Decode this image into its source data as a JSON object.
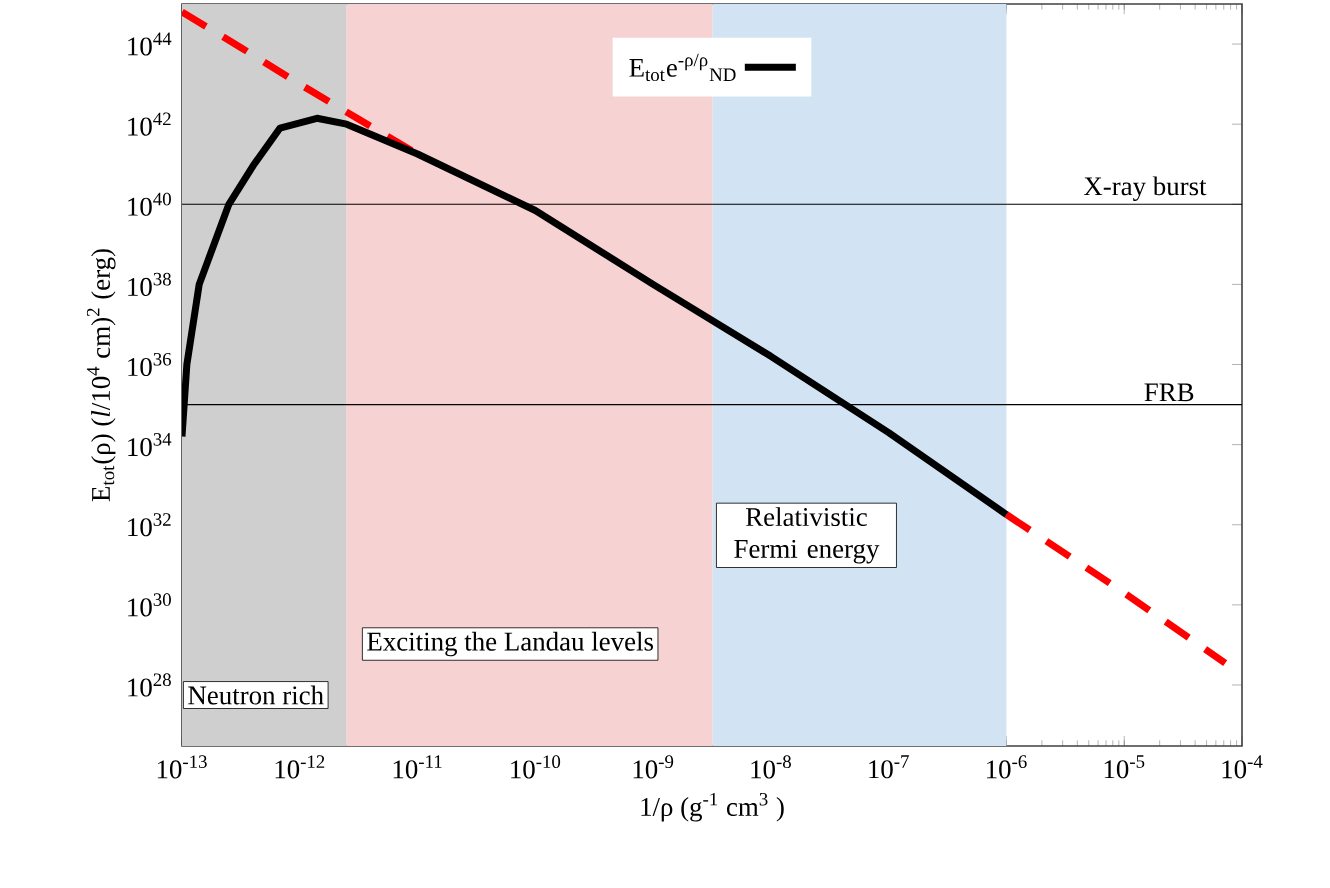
{
  "chart_data": {
    "type": "line",
    "xlabel": "1/ρ (g$^{-1}$ cm$^{3}$ )",
    "ylabel": "E$_{tot}$(ρ) (*l*/10$^{4}$ cm)$^{2}$ (erg)",
    "log": "xy",
    "grid": false,
    "legend": "top",
    "xlim": [
      1e-13,
      0.0001
    ],
    "ylim": [
      3e+26,
      1e+45
    ],
    "xticks": [
      {
        "value": 1e-13,
        "label": "10$^{-13}$"
      },
      {
        "value": 1e-12,
        "label": "10$^{-12}$"
      },
      {
        "value": 1e-11,
        "label": "10$^{-11}$"
      },
      {
        "value": 1e-10,
        "label": "10$^{-10}$"
      },
      {
        "value": 1e-09,
        "label": "10$^{-9}$"
      },
      {
        "value": 1e-08,
        "label": "10$^{-8}$"
      },
      {
        "value": 1e-07,
        "label": "10$^{-7}$"
      },
      {
        "value": 1e-06,
        "label": "10$^{-6}$"
      },
      {
        "value": 1e-05,
        "label": "10$^{-5}$"
      },
      {
        "value": 0.0001,
        "label": "10$^{-4}$"
      }
    ],
    "yticks": [
      {
        "value": 1e+28,
        "label": "10$^{28}$"
      },
      {
        "value": 1e+30,
        "label": "10$^{30}$"
      },
      {
        "value": 1e+32,
        "label": "10$^{32}$"
      },
      {
        "value": 1e+34,
        "label": "10$^{34}$"
      },
      {
        "value": 1e+36,
        "label": "10$^{36}$"
      },
      {
        "value": 1e+38,
        "label": "10$^{38}$"
      },
      {
        "value": 1e+40,
        "label": "10$^{40}$"
      },
      {
        "value": 1e+42,
        "label": "10$^{42}$"
      },
      {
        "value": 1e+44,
        "label": "10$^{44}$"
      }
    ],
    "bands": [
      {
        "axis": "x",
        "from": 1e-13,
        "to": 2.5e-12,
        "label": "Neutron rich",
        "color": "#cfcfcf"
      },
      {
        "axis": "x",
        "from": 2.5e-12,
        "to": 3.2e-09,
        "label": "Exciting the Landau levels",
        "color": "#f7d2d2"
      },
      {
        "axis": "x",
        "from": 3.2e-09,
        "to": 1e-06,
        "label": "Relativistic Fermi energy",
        "color": "#d2e4f3"
      }
    ],
    "ref_lines": [
      {
        "axis": "y",
        "value": 1e+40,
        "label": "X-ray burst"
      },
      {
        "axis": "y",
        "value": 1e+35,
        "label": "FRB"
      }
    ],
    "series": [
      {
        "color": "#ff0000",
        "line_style": "dashed",
        "x": [
          1e-13,
          3.2e-13,
          1e-12,
          3.2e-12,
          1e-11,
          1e-10,
          1e-09,
          1e-08,
          1e-07,
          1e-06,
          1e-05,
          7.2e-05
        ],
        "values": [
          6.3e+44,
          8e+43,
          1e+43,
          1.3e+42,
          1.8e+41,
          null,
          null,
          null,
          null,
          1.8e+32,
          2e+30,
          3.5e+28
        ]
      },
      {
        "name": "E$_{tot}$e$^{-ρ/ρ}$$_{ND}$",
        "color": "#000000",
        "line_style": "solid",
        "x": [
          1e-13,
          1.1e-13,
          1.4e-13,
          2.5e-13,
          4.1e-13,
          6.8e-13,
          1.4e-12,
          2.5e-12,
          1e-11,
          1e-10,
          1e-09,
          1e-08,
          1e-07,
          1e-06
        ],
        "values": [
          1.6e+34,
          1e+36,
          1e+38,
          1e+40,
          1e+41,
          8e+41,
          1.4e+42,
          1e+42,
          1.8e+41,
          7e+39,
          1e+38,
          1.6e+36,
          2e+34,
          1.8e+32
        ]
      }
    ]
  }
}
